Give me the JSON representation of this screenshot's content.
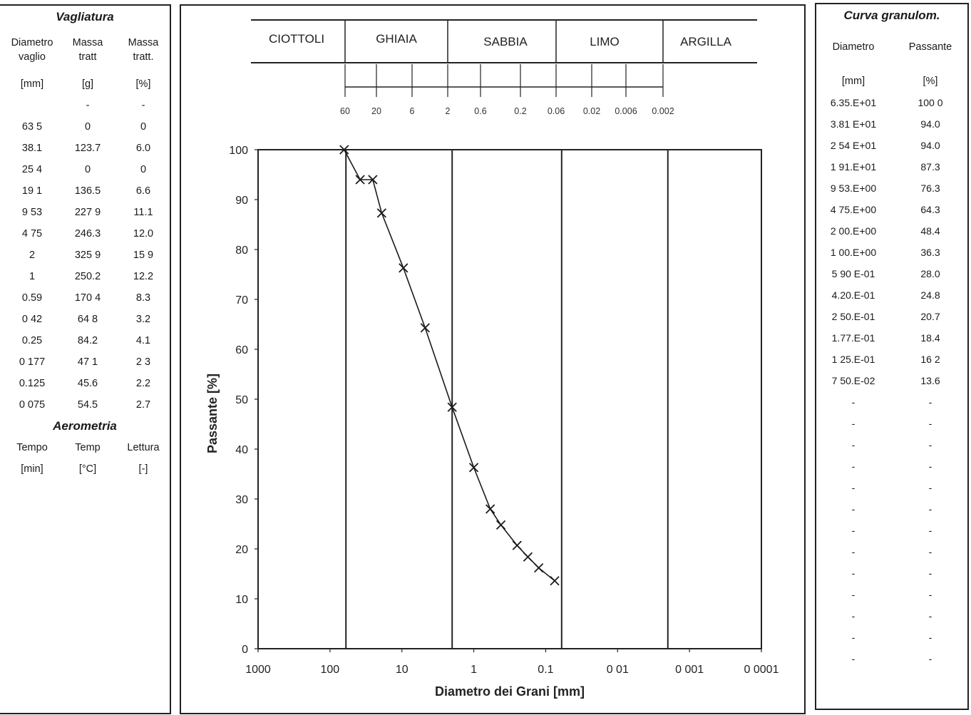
{
  "vagliatura": {
    "title": "Vagliatura",
    "headers": [
      "Diametro\nvaglio",
      "Massa\ntratt",
      "Massa\ntratt."
    ],
    "units": [
      "[mm]",
      "[g]",
      "[%]"
    ],
    "rows": [
      [
        "",
        "-",
        "-"
      ],
      [
        "63 5",
        "0",
        "0"
      ],
      [
        "38.1",
        "123.7",
        "6.0"
      ],
      [
        "25 4",
        "0",
        "0"
      ],
      [
        "19 1",
        "136.5",
        "6.6"
      ],
      [
        "9 53",
        "227 9",
        "11.1"
      ],
      [
        "4 75",
        "246.3",
        "12.0"
      ],
      [
        "2",
        "325 9",
        "15 9"
      ],
      [
        "1",
        "250.2",
        "12.2"
      ],
      [
        "0.59",
        "170 4",
        "8.3"
      ],
      [
        "0 42",
        "64 8",
        "3.2"
      ],
      [
        "0.25",
        "84.2",
        "4.1"
      ],
      [
        "0 177",
        "47 1",
        "2 3"
      ],
      [
        "0.125",
        "45.6",
        "2.2"
      ],
      [
        "0 075",
        "54.5",
        "2.7"
      ]
    ]
  },
  "aerometria": {
    "title": "Aerometria",
    "headers": [
      "Tempo",
      "Temp",
      "Lettura"
    ],
    "units": [
      "[min]",
      "[°C]",
      "[-]"
    ]
  },
  "curva": {
    "title": "Curva granulom.",
    "headers": [
      "Diametro",
      "Passante"
    ],
    "units": [
      "[mm]",
      "[%]"
    ],
    "rows": [
      [
        "6.35.E+01",
        "100 0"
      ],
      [
        "3.81 E+01",
        "94.0"
      ],
      [
        "2 54 E+01",
        "94.0"
      ],
      [
        "1 91.E+01",
        "87.3"
      ],
      [
        "9 53.E+00",
        "76.3"
      ],
      [
        "4 75.E+00",
        "64.3"
      ],
      [
        "2 00.E+00",
        "48.4"
      ],
      [
        "1 00.E+00",
        "36.3"
      ],
      [
        "5 90 E-01",
        "28.0"
      ],
      [
        "4.20.E-01",
        "24.8"
      ],
      [
        "2 50.E-01",
        "20.7"
      ],
      [
        "1.77.E-01",
        "18.4"
      ],
      [
        "1 25.E-01",
        "16 2"
      ],
      [
        "7 50.E-02",
        "13.6"
      ],
      [
        "-",
        "-"
      ],
      [
        "-",
        "-"
      ],
      [
        "-",
        "-"
      ],
      [
        "-",
        "-"
      ],
      [
        "-",
        "-"
      ],
      [
        "-",
        "-"
      ],
      [
        "-",
        "-"
      ],
      [
        "-",
        "-"
      ],
      [
        "-",
        "-"
      ],
      [
        "-",
        "-"
      ],
      [
        "-",
        "-"
      ],
      [
        "-",
        "-"
      ],
      [
        "-",
        "-"
      ]
    ]
  },
  "classification": {
    "names": [
      "CIOTTOLI",
      "GHIAIA",
      "SABBIA",
      "LIMO",
      "ARGILLA"
    ],
    "scale_ticks": [
      "60",
      "20",
      "6",
      "2",
      "0.6",
      "0.2",
      "0.06",
      "0.02",
      "0.006",
      "0.002"
    ]
  },
  "chart_data": {
    "type": "scatter",
    "xlabel": "Diametro dei Grani [mm]",
    "ylabel": "Passante [%]",
    "x_scale": "log-reversed",
    "xlim": [
      1000,
      0.0001
    ],
    "ylim": [
      0,
      100
    ],
    "xticks": [
      "1000",
      "100",
      "10",
      "1",
      "0.1",
      "0 01",
      "0 001",
      "0 0001"
    ],
    "yticks": [
      "0",
      "10",
      "20",
      "30",
      "40",
      "50",
      "60",
      "70",
      "80",
      "90",
      "100"
    ],
    "boundaries": [
      60,
      2,
      0.06,
      0.002
    ],
    "series": [
      {
        "x": [
          63.5,
          38.1,
          25.4,
          19.1,
          9.53,
          4.75,
          2.0,
          1.0,
          0.59,
          0.42,
          0.25,
          0.177,
          0.125,
          0.075
        ],
        "y": [
          100,
          94.0,
          94.0,
          87.3,
          76.3,
          64.3,
          48.4,
          36.3,
          28.0,
          24.8,
          20.7,
          18.4,
          16.2,
          13.6
        ]
      }
    ],
    "colors": {
      "line": "#1a1a1a",
      "marker": "#1a1a1a"
    }
  }
}
